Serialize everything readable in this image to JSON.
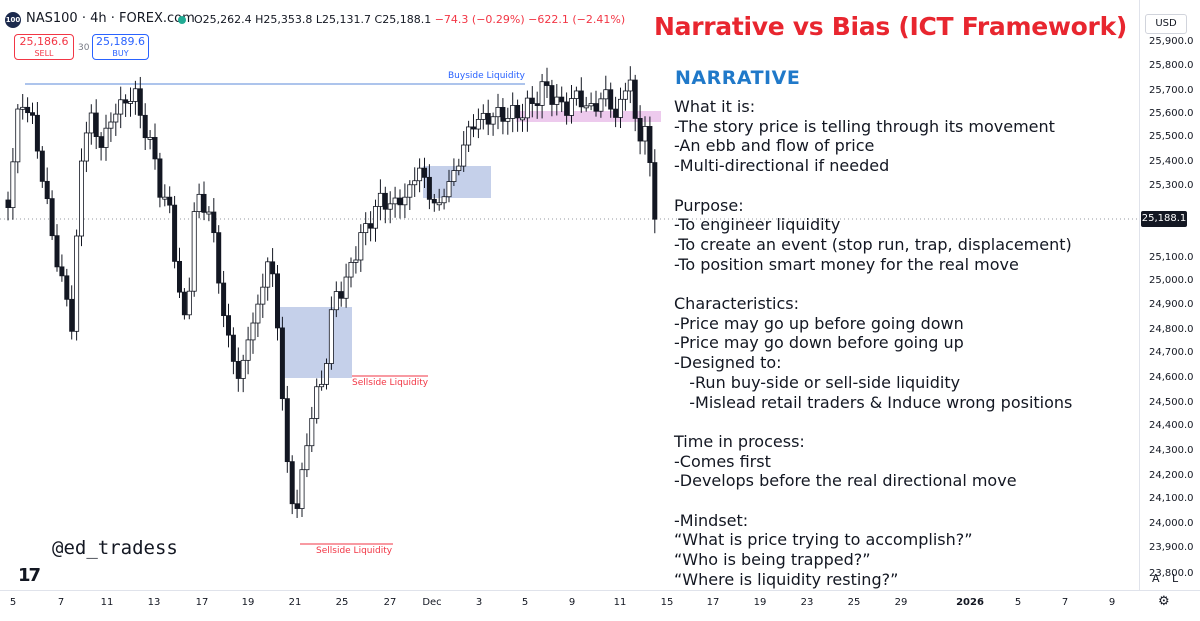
{
  "header": {
    "logo_text": "100",
    "symbol_title": "NAS100 · 4h · FOREX.com",
    "ohlc_open": "O25,262.4",
    "ohlc_high": "H25,353.8",
    "ohlc_low": "L25,131.7",
    "ohlc_close": "C25,188.1",
    "ohlc_change": "−74.3 (−0.29%)",
    "ohlc_change2": "−622.1 (−2.41%)"
  },
  "trade": {
    "sell_price": "25,186.6",
    "sell_label": "SELL",
    "spread": "30",
    "buy_price": "25,189.6",
    "buy_label": "BUY"
  },
  "headline": "Narrative vs Bias (ICT Framework)",
  "narrative": {
    "heading": "NARRATIVE",
    "text": "What it is:\n-The story price is telling through its movement\n-An ebb and flow of price\n-Multi-directional if needed\n\nPurpose:\n-To engineer liquidity\n-To create an event (stop run, trap, displacement)\n-To position smart money for the real move\n\nCharacteristics:\n-Price may go up before going down\n-Price may go down before going up\n-Designed to:\n   -Run buy-side or sell-side liquidity\n   -Mislead retail traders & Induce wrong positions\n\nTime in process:\n-Comes first\n-Develops before the real directional move\n\n-Mindset:\n“What is price trying to accomplish?”\n“Who is being trapped?”\n“Where is liquidity resting?”"
  },
  "watermark": "@ed_tradess",
  "tv_logo": "17",
  "annotations": {
    "buyside": "Buyside Liquidity",
    "sellside_1": "Sellside Liquidity",
    "sellside_2": "Sellside Liquidity"
  },
  "price_axis": {
    "currency": "USD",
    "last_price": "25,188.1",
    "ticks": [
      "25,900.0",
      "25,800.0",
      "25,700.0",
      "25,600.0",
      "25,500.0",
      "25,400.0",
      "25,300.0",
      "25,100.0",
      "25,000.0",
      "24,900.0",
      "24,800.0",
      "24,700.0",
      "24,600.0",
      "24,500.0",
      "24,400.0",
      "24,300.0",
      "24,200.0",
      "24,100.0",
      "24,000.0",
      "23,900.0",
      "23,800.0"
    ]
  },
  "time_axis": {
    "ticks": [
      "5",
      "7",
      "11",
      "13",
      "17",
      "19",
      "21",
      "25",
      "27",
      "Dec",
      "3",
      "5",
      "9",
      "11",
      "15",
      "17",
      "19",
      "23",
      "25",
      "29",
      "2026",
      "5",
      "7",
      "9"
    ]
  },
  "controls": {
    "auto": "A",
    "log": "L",
    "settings_icon": "gear-icon"
  },
  "colors": {
    "up": "#ffffff",
    "down": "#131722",
    "headline": "#e8262f",
    "narrative_heading": "#2079c9",
    "fvg_blue": "#9fb0dc",
    "fvg_pink": "#e5b3e6",
    "buyside_line": "#5b8ad8",
    "sellside_line": "#f23645"
  }
}
